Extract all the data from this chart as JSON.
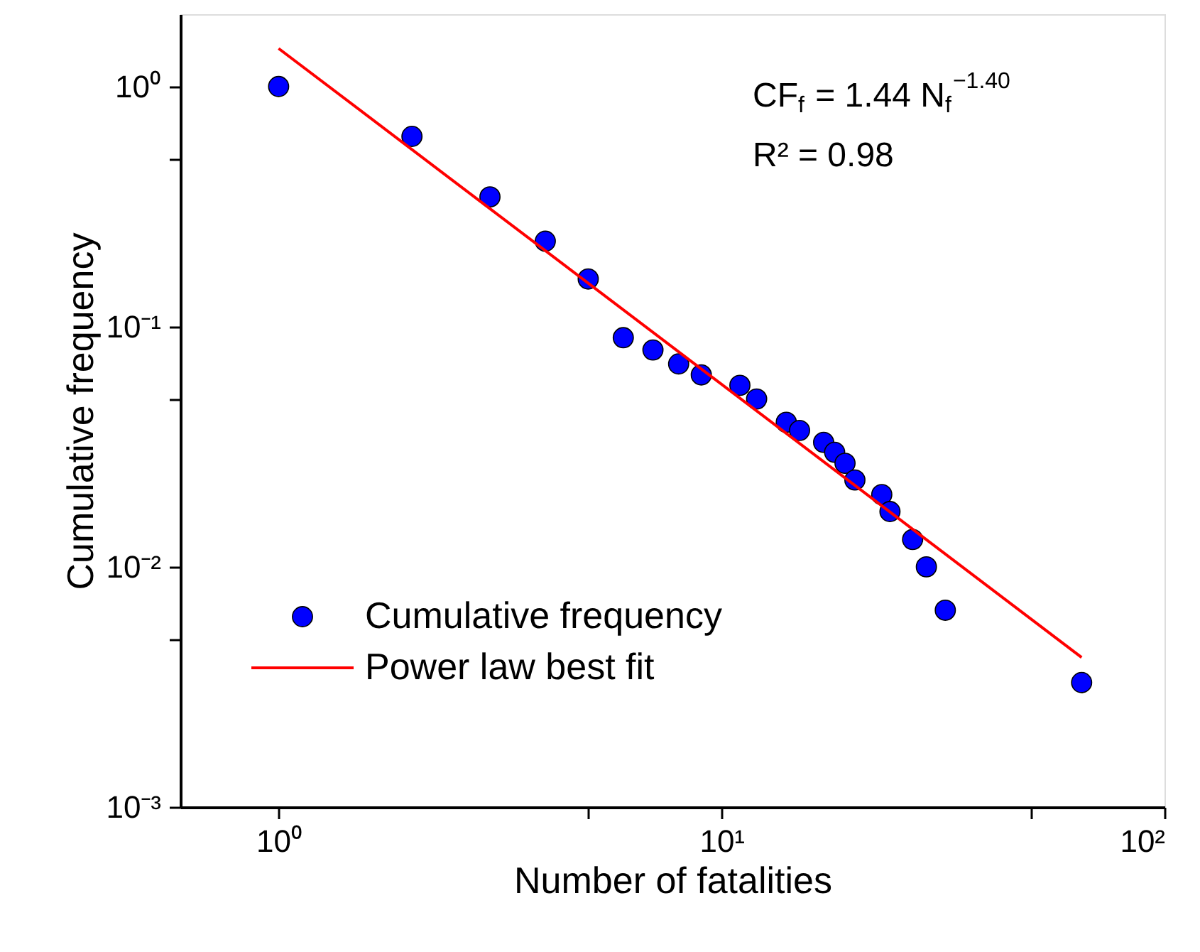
{
  "chart_data": {
    "type": "scatter",
    "xlabel": "Number of fatalities",
    "ylabel": "Cumulative frequency",
    "annotations": [
      "CF$_{f}$ = 1.44 N$_{f}$$^{−1.40}$",
      "R² = 0.98"
    ],
    "series": [
      {
        "name": "Cumulative frequency",
        "marker": "circle",
        "color": "#0000ff",
        "x": [
          1,
          2,
          3,
          4,
          5,
          6,
          7,
          8,
          9,
          11,
          12,
          14,
          15,
          17,
          18,
          19,
          20,
          23,
          24,
          27,
          29,
          32,
          65
        ],
        "values": [
          1.0,
          0.62,
          0.347,
          0.227,
          0.158,
          0.09,
          0.08,
          0.07,
          0.063,
          0.057,
          0.05,
          0.04,
          0.037,
          0.033,
          0.03,
          0.027,
          0.023,
          0.02,
          0.017,
          0.013,
          0.01,
          0.0066,
          0.0033
        ]
      },
      {
        "name": "Power law best fit",
        "type": "line",
        "line_style": "solid",
        "color": "#ff0000",
        "x": [
          1,
          65
        ],
        "values": [
          1.44,
          0.0042
        ]
      }
    ],
    "xlim": [
      0.6,
      100
    ],
    "ylim": [
      0.001,
      2
    ],
    "log": "xy",
    "xticks": [
      {
        "value": 1,
        "label": "10⁰"
      },
      {
        "value": 5,
        "label": null
      },
      {
        "value": 10,
        "label": "10¹"
      },
      {
        "value": 50,
        "label": null
      },
      {
        "value": 100,
        "label": "10²"
      }
    ],
    "yticks": [
      {
        "value": 0.001,
        "label": "10⁻³"
      },
      {
        "value": 0.005,
        "label": null
      },
      {
        "value": 0.01,
        "label": "10⁻²"
      },
      {
        "value": 0.05,
        "label": null
      },
      {
        "value": 0.1,
        "label": "10⁻¹"
      },
      {
        "value": 0.5,
        "label": null
      },
      {
        "value": 1,
        "label": "10⁰"
      }
    ],
    "grid": false,
    "legend": "bottom left"
  }
}
